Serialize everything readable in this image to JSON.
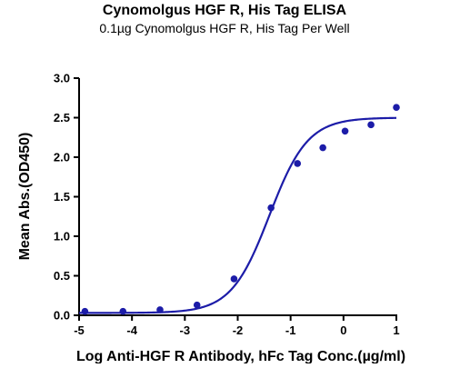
{
  "chart_data": {
    "type": "scatter",
    "title": "Cynomolgus HGF R, His Tag ELISA",
    "subtitle": "0.1µg Cynomolgus HGF R, His Tag Per Well",
    "xlabel": "Log Anti-HGF R Antibody, hFc Tag Conc.(µg/ml)",
    "ylabel": "Mean Abs.(OD450)",
    "xlim": [
      -5,
      1
    ],
    "ylim": [
      0,
      3.0
    ],
    "x_ticks": [
      "-5",
      "-4",
      "-3",
      "-2",
      "-1",
      "0",
      "1"
    ],
    "y_ticks": [
      "0.0",
      "0.5",
      "1.0",
      "1.5",
      "2.0",
      "2.5",
      "3.0"
    ],
    "grid": false,
    "series": [
      {
        "color": "#1c1ca8",
        "points": [
          {
            "x": -4.89,
            "y": 0.05
          },
          {
            "x": -4.17,
            "y": 0.05
          },
          {
            "x": -3.47,
            "y": 0.07
          },
          {
            "x": -2.77,
            "y": 0.13
          },
          {
            "x": -2.07,
            "y": 0.46
          },
          {
            "x": -1.37,
            "y": 1.36
          },
          {
            "x": -0.87,
            "y": 1.92
          },
          {
            "x": -0.39,
            "y": 2.12
          },
          {
            "x": 0.03,
            "y": 2.33
          },
          {
            "x": 0.52,
            "y": 2.41
          },
          {
            "x": 1.0,
            "y": 2.63
          }
        ],
        "fit": {
          "model": "4PL",
          "bottom": 0.03,
          "top": 2.5,
          "logEC50": -1.4,
          "hill": 1.2
        }
      }
    ]
  }
}
